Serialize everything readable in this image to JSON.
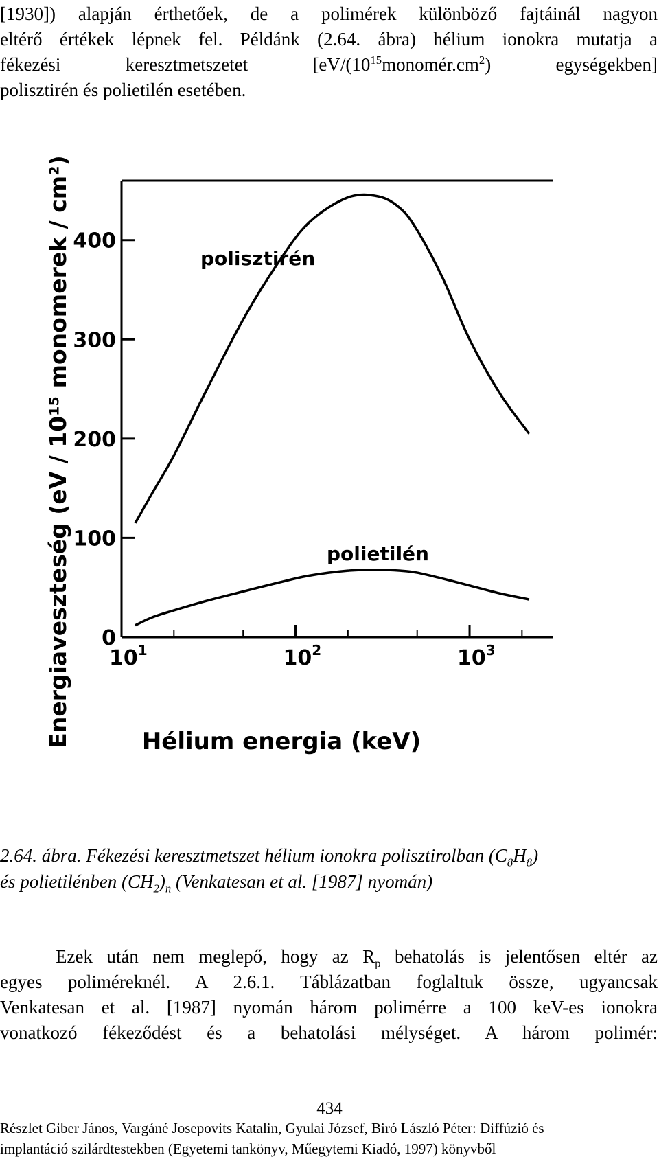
{
  "paragraph_top": {
    "line1": "[1930]) alapján érthetőek, de a polimérek különböző fajtáinál nagyon",
    "line2": "eltérő értékek lépnek fel. Példánk (2.64. ábra) hélium ionokra mutatja a",
    "line3_a": "fékezési keresztmetszetet [eV/(10",
    "line3_sup": "15",
    "line3_b": "monomér.cm",
    "line3_sup2": "2",
    "line3_c": ") egységekben]",
    "line4": "polisztirén és polietilén esetében."
  },
  "chart_data": {
    "type": "line",
    "xlabel": "Hélium energia (keV)",
    "ylabel": "Energiaveszteség (eV / 10¹⁵ monomerek / cm²)",
    "x_scale": "log",
    "xlim": [
      10,
      3000
    ],
    "ylim": [
      0,
      460
    ],
    "x_ticks": [
      {
        "value": 10,
        "base": "10",
        "exp": "1"
      },
      {
        "value": 100,
        "base": "10",
        "exp": "2"
      },
      {
        "value": 1000,
        "base": "10",
        "exp": "3"
      }
    ],
    "y_ticks": [
      0,
      100,
      200,
      300,
      400
    ],
    "grid": false,
    "series": [
      {
        "name": "polisztirén",
        "x": [
          12,
          15,
          20,
          30,
          50,
          80,
          120,
          200,
          300,
          400,
          500,
          700,
          1000,
          1500,
          2200
        ],
        "y": [
          115,
          145,
          183,
          245,
          320,
          378,
          418,
          443,
          444,
          432,
          410,
          362,
          300,
          245,
          205
        ]
      },
      {
        "name": "polietilén",
        "x": [
          12,
          15,
          20,
          30,
          50,
          80,
          120,
          200,
          300,
          400,
          500,
          700,
          1000,
          1500,
          2200
        ],
        "y": [
          12,
          20,
          27,
          36,
          46,
          55,
          62,
          67,
          68,
          67,
          65,
          59,
          52,
          44,
          38
        ]
      }
    ]
  },
  "caption": {
    "line1_a": "2.64. ábra. Fékezési keresztmetszet hélium ionokra polisztirolban (C",
    "line1_sub1": "8",
    "line1_b": "H",
    "line1_sub2": "8",
    "line1_c": ")",
    "line2_a": "és polietilénben (CH",
    "line2_sub1": "2",
    "line2_b": ")",
    "line2_sub2": "n",
    "line2_c": " (Venkatesan et al. [1987] nyomán)"
  },
  "paragraph_bottom": {
    "line1_a": "Ezek után nem meglepő, hogy az R",
    "line1_sub": "p",
    "line1_b": " behatolás is jelentősen eltér az",
    "line2": "egyes poliméreknél. A 2.6.1. Táblázatban foglaltuk össze, ugyancsak",
    "line3": "Venkatesan et al. [1987] nyomán három polimérre a 100 keV-es ionokra",
    "line4": "vonatkozó fékeződést és a behatolási mélységet. A három polimér:"
  },
  "page_number": "434",
  "footer": {
    "line1": "Részlet Giber János, Vargáné Josepovits Katalin, Gyulai József, Biró László Péter: Diffúzió és",
    "line2": "implantáció szilárdtestekben (Egyetemi tankönyv, Műegytemi Kiadó, 1997) könyvből"
  }
}
